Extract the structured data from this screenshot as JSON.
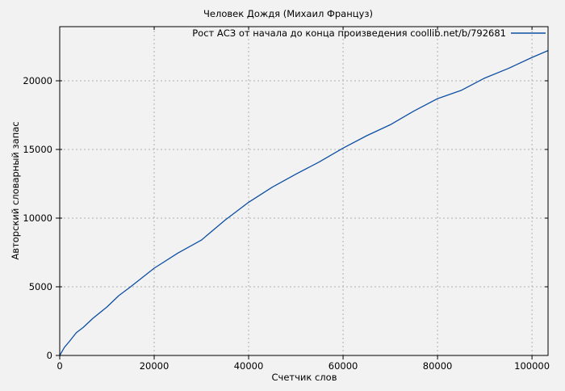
{
  "figure": {
    "title": "Человек Дождя (Михаил Француз)",
    "background_color": "#f2f2f2",
    "border_color": "#000000",
    "grid_color": "#b0b0b0",
    "text_color": "#000000"
  },
  "legend": {
    "label": "Рост АСЗ от начала до конца произведения coollib.net/b/792681",
    "line_color": "#0d4fa3",
    "position": "top-right-inside"
  },
  "chart_data": {
    "type": "line",
    "title": "Человек Дождя (Михаил Француз)",
    "xlabel": "Счетчик слов",
    "ylabel": "Авторский словарный запас",
    "xlim": [
      0,
      103400
    ],
    "ylim": [
      0,
      23941
    ],
    "x_ticks": [
      0,
      20000,
      40000,
      60000,
      80000,
      100000
    ],
    "y_ticks": [
      0,
      5000,
      10000,
      15000,
      20000
    ],
    "grid": true,
    "grid_style": "dashed",
    "legend_position": "top-right",
    "series": [
      {
        "name": "Рост АСЗ от начала до конца произведения coollib.net/b/792681",
        "color": "#0d4fa3",
        "x": [
          0,
          1000,
          2000,
          3500,
          5000,
          7000,
          10000,
          12500,
          15000,
          20000,
          25000,
          30000,
          35000,
          40000,
          45000,
          50000,
          55000,
          60000,
          65000,
          70000,
          75000,
          80000,
          85000,
          90000,
          95000,
          100000,
          103400
        ],
        "y": [
          0,
          600,
          1000,
          1650,
          2050,
          2700,
          3530,
          4350,
          5000,
          6350,
          7450,
          8400,
          9850,
          11150,
          12250,
          13200,
          14100,
          15100,
          16000,
          16800,
          17800,
          18700,
          19300,
          20200,
          20900,
          21700,
          22200
        ]
      }
    ]
  }
}
